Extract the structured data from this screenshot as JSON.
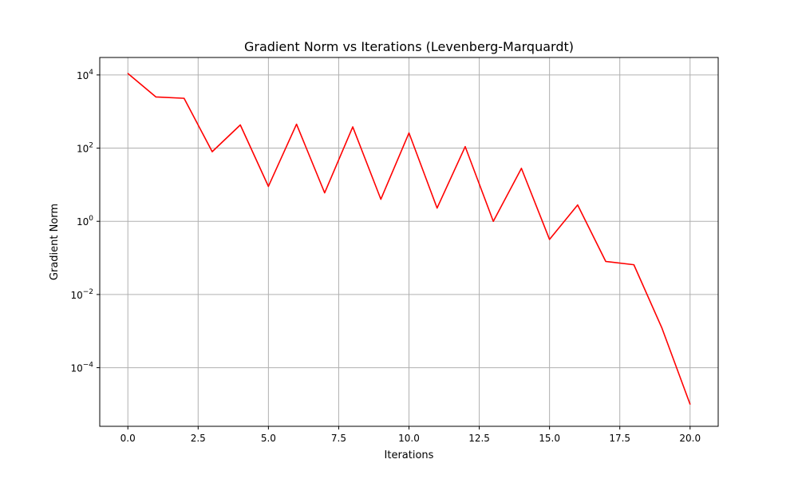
{
  "chart_data": {
    "type": "line",
    "title": "Gradient Norm vs Iterations (Levenberg-Marquardt)",
    "xlabel": "Iterations",
    "ylabel": "Gradient Norm",
    "xlim": [
      -1.0,
      21.0
    ],
    "ylim": [
      2.5e-06,
      30000.0
    ],
    "yscale": "log",
    "grid": true,
    "x_ticks": [
      0.0,
      2.5,
      5.0,
      7.5,
      10.0,
      12.5,
      15.0,
      17.5,
      20.0
    ],
    "x_tick_labels": [
      "0.0",
      "2.5",
      "5.0",
      "7.5",
      "10.0",
      "12.5",
      "15.0",
      "17.5",
      "20.0"
    ],
    "y_ticks": [
      {
        "value": 10000,
        "base": "10",
        "exp": "4"
      },
      {
        "value": 100,
        "base": "10",
        "exp": "2"
      },
      {
        "value": 1,
        "base": "10",
        "exp": "0"
      },
      {
        "value": 0.01,
        "base": "10",
        "exp": "−2"
      },
      {
        "value": 0.0001,
        "base": "10",
        "exp": "−4"
      }
    ],
    "series": [
      {
        "color": "#ff0000",
        "x": [
          0,
          1,
          2,
          3,
          4,
          5,
          6,
          7,
          8,
          9,
          10,
          11,
          12,
          13,
          14,
          15,
          16,
          17,
          18,
          19,
          20
        ],
        "y": [
          11000,
          2500,
          2300,
          80,
          430,
          9,
          450,
          6,
          380,
          4,
          260,
          2.3,
          110,
          1.0,
          28,
          0.32,
          2.8,
          0.08,
          0.065,
          0.0012,
          1e-05
        ]
      }
    ]
  }
}
